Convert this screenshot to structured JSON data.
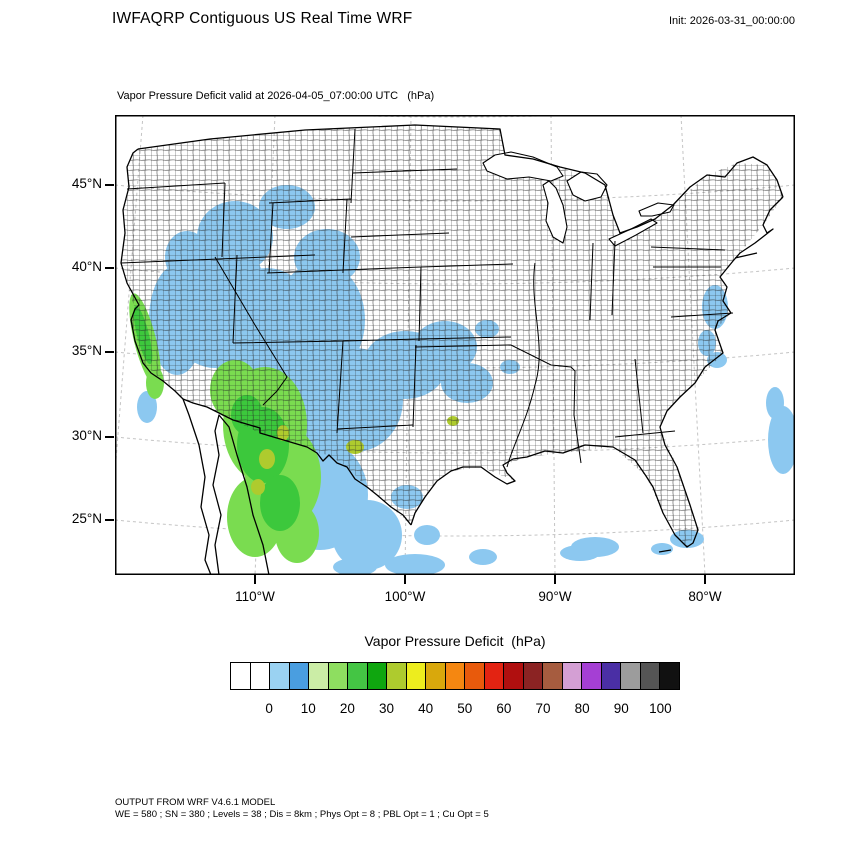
{
  "header": {
    "title": "IWFAQRP Contiguous US Real Time WRF",
    "init_label": "Init: 2026-03-31_00:00:00"
  },
  "map": {
    "subtitle": "Vapor Pressure Deficit valid at 2026-04-05_07:00:00 UTC   (hPa)",
    "lat_ticks": [
      "45°N",
      "40°N",
      "35°N",
      "30°N",
      "25°N"
    ],
    "lon_ticks": [
      "110°W",
      "100°W",
      "90°W",
      "80°W"
    ],
    "field_colors": {
      "low_blue": "#8CC8F0",
      "light_green": "#7ADC50",
      "green": "#3CC83C",
      "yellow_green": "#AECB2E"
    }
  },
  "colorbar": {
    "title": "Vapor Pressure Deficit  (hPa)",
    "tick_labels": [
      "0",
      "10",
      "20",
      "30",
      "40",
      "50",
      "60",
      "70",
      "80",
      "90",
      "100"
    ],
    "box_colors": [
      "#FFFFFF",
      "#FFFFFF",
      "#9AD2F2",
      "#4A9EE0",
      "#CBEDA6",
      "#8EDE60",
      "#44C544",
      "#0FA60F",
      "#AECB2E",
      "#EDED1E",
      "#D9A80C",
      "#F58711",
      "#E85A0C",
      "#E32312",
      "#B00F0F",
      "#8B2323",
      "#A65C3F",
      "#D49FD4",
      "#A53FD4",
      "#4A2FA5",
      "#9C9C9C",
      "#555555",
      "#111111"
    ]
  },
  "footer": {
    "line1": "OUTPUT FROM WRF V4.6.1 MODEL",
    "line2": "WE = 580 ; SN = 380 ; Levels = 38 ; Dis = 8km ; Phys Opt = 8 ; PBL Opt = 1 ; Cu Opt = 5"
  }
}
